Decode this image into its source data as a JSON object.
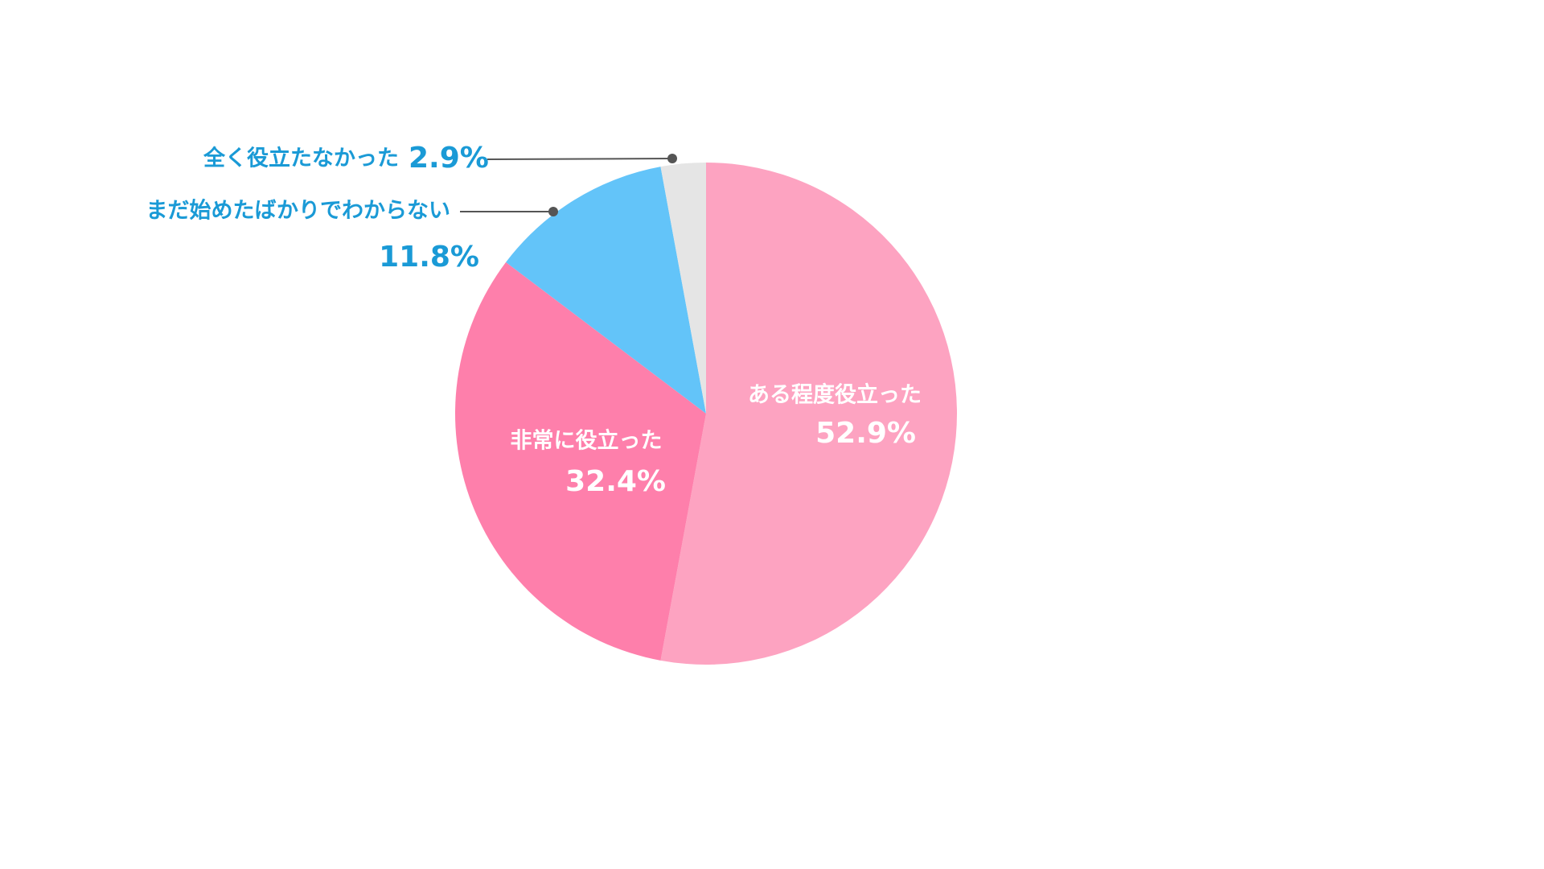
{
  "chart_data": {
    "type": "pie",
    "categories": [
      "ある程度役立った",
      "非常に役立った",
      "まだ始めたばかりでわからない",
      "全く役立たなかった"
    ],
    "values": [
      52.9,
      32.4,
      11.8,
      2.9
    ],
    "value_labels": [
      "52.9%",
      "32.4%",
      "11.8%",
      "2.9%"
    ],
    "colors": [
      "#fda3c1",
      "#fe7fab",
      "#63c4f9",
      "#e5e5e5"
    ]
  }
}
